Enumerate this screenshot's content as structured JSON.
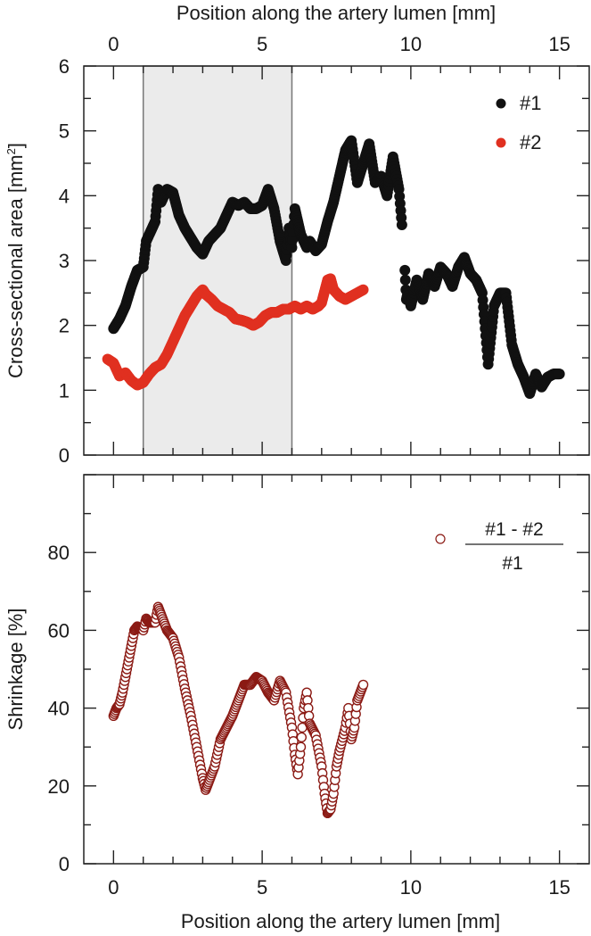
{
  "chart_data": [
    {
      "type": "scatter",
      "panel": "top",
      "title": "",
      "xlabel": "Position along the artery lumen [mm]",
      "xlabel_position": "top",
      "ylabel": "Cross-sectional area [mm²]",
      "xlim": [
        -1,
        16
      ],
      "ylim": [
        0,
        6
      ],
      "x_ticks": [
        0,
        5,
        10,
        15
      ],
      "y_ticks": [
        0,
        1,
        2,
        3,
        4,
        5,
        6
      ],
      "grid": false,
      "legend_position": "upper right",
      "shaded_region": {
        "x_start": 1.0,
        "x_end": 6.0,
        "color": "#ebebeb"
      },
      "series": [
        {
          "name": "#1",
          "color": "#111111",
          "marker": "filled-circle",
          "x": [
            0.0,
            0.2,
            0.4,
            0.6,
            0.8,
            1.0,
            1.1,
            1.3,
            1.4,
            1.5,
            1.6,
            1.8,
            2.0,
            2.2,
            2.4,
            2.6,
            2.8,
            3.0,
            3.2,
            3.4,
            3.6,
            3.8,
            4.0,
            4.2,
            4.4,
            4.6,
            4.8,
            5.0,
            5.2,
            5.4,
            5.6,
            5.8,
            5.9,
            6.0,
            6.1,
            6.3,
            6.5,
            6.6,
            6.8,
            7.0,
            7.2,
            7.4,
            7.6,
            7.8,
            8.0,
            8.2,
            8.4,
            8.6,
            8.8,
            9.0,
            9.2,
            9.4,
            9.6,
            9.7,
            9.8,
            9.85,
            9.9,
            10.0,
            10.2,
            10.4,
            10.6,
            10.8,
            11.0,
            11.2,
            11.4,
            11.6,
            11.8,
            12.0,
            12.2,
            12.4,
            12.6,
            12.8,
            13.0,
            13.2,
            13.4,
            13.6,
            13.8,
            14.0,
            14.1,
            14.2,
            14.4,
            14.6,
            14.8,
            15.0
          ],
          "y": [
            1.95,
            2.1,
            2.3,
            2.6,
            2.85,
            2.9,
            3.3,
            3.5,
            3.6,
            4.1,
            3.9,
            4.1,
            4.05,
            3.7,
            3.5,
            3.35,
            3.2,
            3.1,
            3.3,
            3.4,
            3.5,
            3.7,
            3.9,
            3.85,
            3.9,
            3.8,
            3.8,
            3.85,
            4.1,
            3.8,
            3.3,
            3.0,
            3.5,
            3.2,
            3.8,
            3.4,
            3.2,
            3.3,
            3.15,
            3.25,
            3.6,
            3.9,
            4.3,
            4.7,
            4.85,
            4.2,
            4.5,
            4.8,
            4.2,
            4.3,
            4.0,
            4.6,
            4.1,
            3.55,
            2.85,
            2.4,
            2.5,
            2.3,
            2.7,
            2.4,
            2.8,
            2.6,
            2.9,
            2.8,
            2.6,
            2.9,
            3.05,
            2.8,
            2.7,
            2.5,
            1.4,
            2.3,
            2.5,
            2.5,
            1.7,
            1.4,
            1.2,
            0.95,
            1.1,
            1.25,
            1.05,
            1.2,
            1.25,
            1.25
          ]
        },
        {
          "name": "#2",
          "color": "#e03020",
          "marker": "filled-circle",
          "x": [
            -0.2,
            0.0,
            0.2,
            0.4,
            0.6,
            0.8,
            1.0,
            1.2,
            1.4,
            1.6,
            1.8,
            2.0,
            2.2,
            2.4,
            2.6,
            2.8,
            3.0,
            3.1,
            3.3,
            3.5,
            3.7,
            3.9,
            4.1,
            4.3,
            4.5,
            4.7,
            4.9,
            5.1,
            5.3,
            5.5,
            5.7,
            5.9,
            6.1,
            6.3,
            6.5,
            6.7,
            6.9,
            7.0,
            7.2,
            7.3,
            7.4,
            7.6,
            7.8,
            8.0,
            8.2,
            8.4
          ],
          "y": [
            1.48,
            1.42,
            1.22,
            1.27,
            1.15,
            1.08,
            1.12,
            1.25,
            1.35,
            1.4,
            1.55,
            1.75,
            1.95,
            2.15,
            2.3,
            2.45,
            2.55,
            2.48,
            2.4,
            2.3,
            2.25,
            2.2,
            2.1,
            2.08,
            2.05,
            2.0,
            2.05,
            2.15,
            2.2,
            2.2,
            2.25,
            2.25,
            2.3,
            2.25,
            2.3,
            2.25,
            2.3,
            2.35,
            2.7,
            2.72,
            2.55,
            2.45,
            2.4,
            2.45,
            2.5,
            2.55
          ]
        }
      ]
    },
    {
      "type": "scatter",
      "panel": "bottom",
      "title": "",
      "xlabel": "Position along the artery lumen [mm]",
      "xlabel_position": "bottom",
      "ylabel": "Shrinkage [%]",
      "xlim": [
        -1,
        16
      ],
      "ylim": [
        0,
        100
      ],
      "x_ticks": [
        0,
        5,
        10,
        15
      ],
      "y_ticks": [
        0,
        20,
        40,
        60,
        80
      ],
      "grid": false,
      "legend_position": "upper right",
      "series": [
        {
          "name": "(#1 - #2) / #1",
          "color": "#8b1a14",
          "marker": "open-circle",
          "x": [
            0.0,
            0.1,
            0.2,
            0.3,
            0.4,
            0.5,
            0.6,
            0.7,
            0.8,
            1.0,
            1.1,
            1.2,
            1.4,
            1.5,
            1.6,
            1.8,
            2.0,
            2.2,
            2.4,
            2.6,
            2.8,
            3.0,
            3.1,
            3.2,
            3.4,
            3.6,
            3.8,
            4.0,
            4.2,
            4.4,
            4.6,
            4.8,
            5.0,
            5.2,
            5.4,
            5.6,
            5.8,
            6.0,
            6.1,
            6.2,
            6.3,
            6.4,
            6.5,
            6.6,
            6.8,
            7.0,
            7.1,
            7.2,
            7.3,
            7.4,
            7.5,
            7.6,
            7.8,
            7.9,
            8.0,
            8.1,
            8.2,
            8.4
          ],
          "y": [
            38,
            40,
            41,
            44,
            48,
            52,
            56,
            60,
            61,
            60,
            63,
            62,
            62,
            66,
            64,
            60,
            58,
            53,
            45,
            38,
            30,
            22,
            19,
            21,
            25,
            32,
            35,
            38,
            42,
            46,
            46,
            48,
            47,
            44,
            42,
            47,
            44,
            35,
            28,
            23,
            30,
            40,
            44,
            36,
            33,
            25,
            18,
            13,
            14,
            18,
            25,
            29,
            35,
            40,
            32,
            35,
            42,
            46
          ]
        }
      ]
    }
  ],
  "labels": {
    "top_xlabel": "Position along the artery lumen [mm]",
    "bottom_xlabel": "Position along the artery lumen [mm]",
    "top_ylabel": "Cross-sectional area [mm",
    "top_ylabel_sup": "2",
    "top_ylabel_end": "]",
    "bottom_ylabel": "Shrinkage [%]",
    "legend_top": [
      "#1",
      "#2"
    ],
    "legend_bottom_numerator": "#1 - #2",
    "legend_bottom_denominator": "#1",
    "x_ticks": [
      "0",
      "5",
      "10",
      "15"
    ],
    "top_y_ticks": [
      "0",
      "1",
      "2",
      "3",
      "4",
      "5",
      "6"
    ],
    "bottom_y_ticks": [
      "0",
      "20",
      "40",
      "60",
      "80"
    ]
  },
  "colors": {
    "series1": "#111111",
    "series2": "#e03020",
    "shrinkage": "#8b1a14",
    "shade": "#ebebeb",
    "axis": "#222222"
  }
}
